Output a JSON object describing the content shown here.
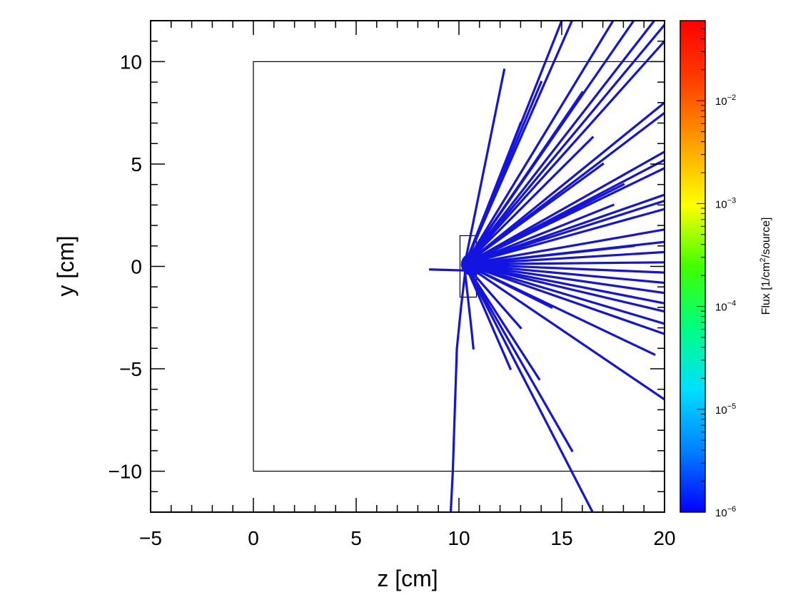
{
  "chart_data": {
    "type": "heatmap",
    "title": "",
    "xlabel": "z [cm]",
    "ylabel": "y [cm]",
    "xlim": [
      -5,
      20
    ],
    "ylim": [
      -12,
      12
    ],
    "x_ticks": [
      {
        "value": -5,
        "label": "−5"
      },
      {
        "value": 0,
        "label": "0"
      },
      {
        "value": 5,
        "label": "5"
      },
      {
        "value": 10,
        "label": "10"
      },
      {
        "value": 15,
        "label": "15"
      },
      {
        "value": 20,
        "label": "20"
      }
    ],
    "y_ticks": [
      {
        "value": 10,
        "label": "10"
      },
      {
        "value": 5,
        "label": "5"
      },
      {
        "value": 0,
        "label": "0"
      },
      {
        "value": -5,
        "label": "−5"
      },
      {
        "value": -10,
        "label": "−10"
      }
    ],
    "colorbar": {
      "label_pre": "Flux [1/cm",
      "label_sup": "2",
      "label_post": "/source]",
      "scale": "log",
      "range": [
        1e-06,
        0.06
      ],
      "ticks": [
        {
          "value": 1e-06,
          "base": "10",
          "exp": "−6"
        },
        {
          "value": 1e-05,
          "base": "10",
          "exp": "−5"
        },
        {
          "value": 0.0001,
          "base": "10",
          "exp": "−4"
        },
        {
          "value": 0.001,
          "base": "10",
          "exp": "−3"
        },
        {
          "value": 0.01,
          "base": "10",
          "exp": "−2"
        }
      ],
      "colors": [
        "#0000ff",
        "#0080ff",
        "#00e0ff",
        "#00ff80",
        "#40ff00",
        "#ffff00",
        "#ffa000",
        "#ff4000",
        "#ff0000"
      ]
    },
    "track_color": "#1414e0",
    "track_value": 1e-06,
    "geometry": [
      {
        "name": "outer-box",
        "z": [
          0,
          20
        ],
        "y": [
          -10,
          10
        ]
      },
      {
        "name": "inner-box",
        "z": [
          10.05,
          10.85
        ],
        "y": [
          -1.5,
          1.5
        ]
      }
    ],
    "origin": [
      10.3,
      0.1
    ],
    "tracks": [
      [
        [
          10.3,
          -0.2
        ],
        [
          8.6,
          -0.15
        ]
      ],
      [
        [
          10.3,
          0.2
        ],
        [
          12.2,
          9.6
        ]
      ],
      [
        [
          10.3,
          0.1
        ],
        [
          15.0,
          12.0
        ]
      ],
      [
        [
          10.3,
          0.1
        ],
        [
          15.5,
          12.0
        ]
      ],
      [
        [
          10.3,
          0.1
        ],
        [
          17.5,
          12.0
        ]
      ],
      [
        [
          10.3,
          0.1
        ],
        [
          18.5,
          12.0
        ]
      ],
      [
        [
          10.3,
          0.1
        ],
        [
          19.5,
          12.0
        ]
      ],
      [
        [
          10.3,
          0.1
        ],
        [
          20.0,
          11.8
        ]
      ],
      [
        [
          10.3,
          0.1
        ],
        [
          20.0,
          11.0
        ]
      ],
      [
        [
          10.3,
          0.1
        ],
        [
          20.0,
          8.0
        ]
      ],
      [
        [
          10.3,
          0.1
        ],
        [
          20.0,
          7.5
        ]
      ],
      [
        [
          10.3,
          0.1
        ],
        [
          20.0,
          5.6
        ]
      ],
      [
        [
          10.3,
          0.1
        ],
        [
          20.0,
          5.2
        ]
      ],
      [
        [
          10.3,
          0.1
        ],
        [
          20.0,
          4.8
        ]
      ],
      [
        [
          10.3,
          0.1
        ],
        [
          20.0,
          3.5
        ]
      ],
      [
        [
          10.3,
          0.1
        ],
        [
          20.0,
          3.2
        ]
      ],
      [
        [
          10.3,
          0.1
        ],
        [
          20.0,
          2.8
        ]
      ],
      [
        [
          10.3,
          0.1
        ],
        [
          20.0,
          1.8
        ]
      ],
      [
        [
          10.3,
          0.1
        ],
        [
          20.0,
          1.2
        ]
      ],
      [
        [
          10.3,
          0.1
        ],
        [
          20.0,
          0.7
        ]
      ],
      [
        [
          10.3,
          0.1
        ],
        [
          20.0,
          0.2
        ]
      ],
      [
        [
          10.3,
          0.1
        ],
        [
          20.0,
          -0.3
        ]
      ],
      [
        [
          10.3,
          0.1
        ],
        [
          20.0,
          -0.8
        ]
      ],
      [
        [
          10.3,
          0.1
        ],
        [
          20.0,
          -1.3
        ]
      ],
      [
        [
          10.3,
          0.1
        ],
        [
          20.0,
          -1.8
        ]
      ],
      [
        [
          10.3,
          0.1
        ],
        [
          20.0,
          -2.2
        ]
      ],
      [
        [
          10.3,
          0.1
        ],
        [
          20.0,
          -2.8
        ]
      ],
      [
        [
          10.3,
          0.1
        ],
        [
          20.0,
          -3.3
        ]
      ],
      [
        [
          10.3,
          0.1
        ],
        [
          19.5,
          -4.3
        ]
      ],
      [
        [
          10.3,
          0.1
        ],
        [
          20.0,
          -6.5
        ]
      ],
      [
        [
          10.3,
          0.1
        ],
        [
          13.0,
          -3.0
        ]
      ],
      [
        [
          10.3,
          0.1
        ],
        [
          13.9,
          -5.5
        ]
      ],
      [
        [
          10.3,
          0.1
        ],
        [
          15.5,
          -9.0
        ]
      ],
      [
        [
          10.3,
          0.1
        ],
        [
          16.5,
          -12.0
        ]
      ],
      [
        [
          10.3,
          0.1
        ],
        [
          12.5,
          -5.0
        ]
      ],
      [
        [
          10.3,
          0.1
        ],
        [
          14.5,
          -2.0
        ]
      ],
      [
        [
          10.3,
          0.1
        ],
        [
          16.0,
          8.5
        ]
      ],
      [
        [
          10.3,
          0.1
        ],
        [
          14.0,
          9.0
        ]
      ],
      [
        [
          10.3,
          0.1
        ],
        [
          13.0,
          7.0
        ]
      ],
      [
        [
          10.3,
          0.1
        ],
        [
          16.5,
          6.3
        ]
      ],
      [
        [
          10.3,
          0.1
        ],
        [
          17.0,
          5.0
        ]
      ],
      [
        [
          10.3,
          0.1
        ],
        [
          18.0,
          4.0
        ]
      ],
      [
        [
          10.3,
          0.1
        ],
        [
          17.5,
          3.0
        ]
      ],
      [
        [
          10.3,
          0.1
        ],
        [
          18.5,
          1.0
        ]
      ],
      [
        [
          10.3,
          -0.3
        ],
        [
          10.6,
          -3.0
        ],
        [
          10.7,
          -4.0
        ]
      ],
      [
        [
          10.3,
          -0.3
        ],
        [
          10.1,
          -2.0
        ],
        [
          9.9,
          -4.0
        ],
        [
          9.8,
          -7.0
        ],
        [
          9.7,
          -10.0
        ],
        [
          9.6,
          -12.0
        ]
      ]
    ]
  }
}
